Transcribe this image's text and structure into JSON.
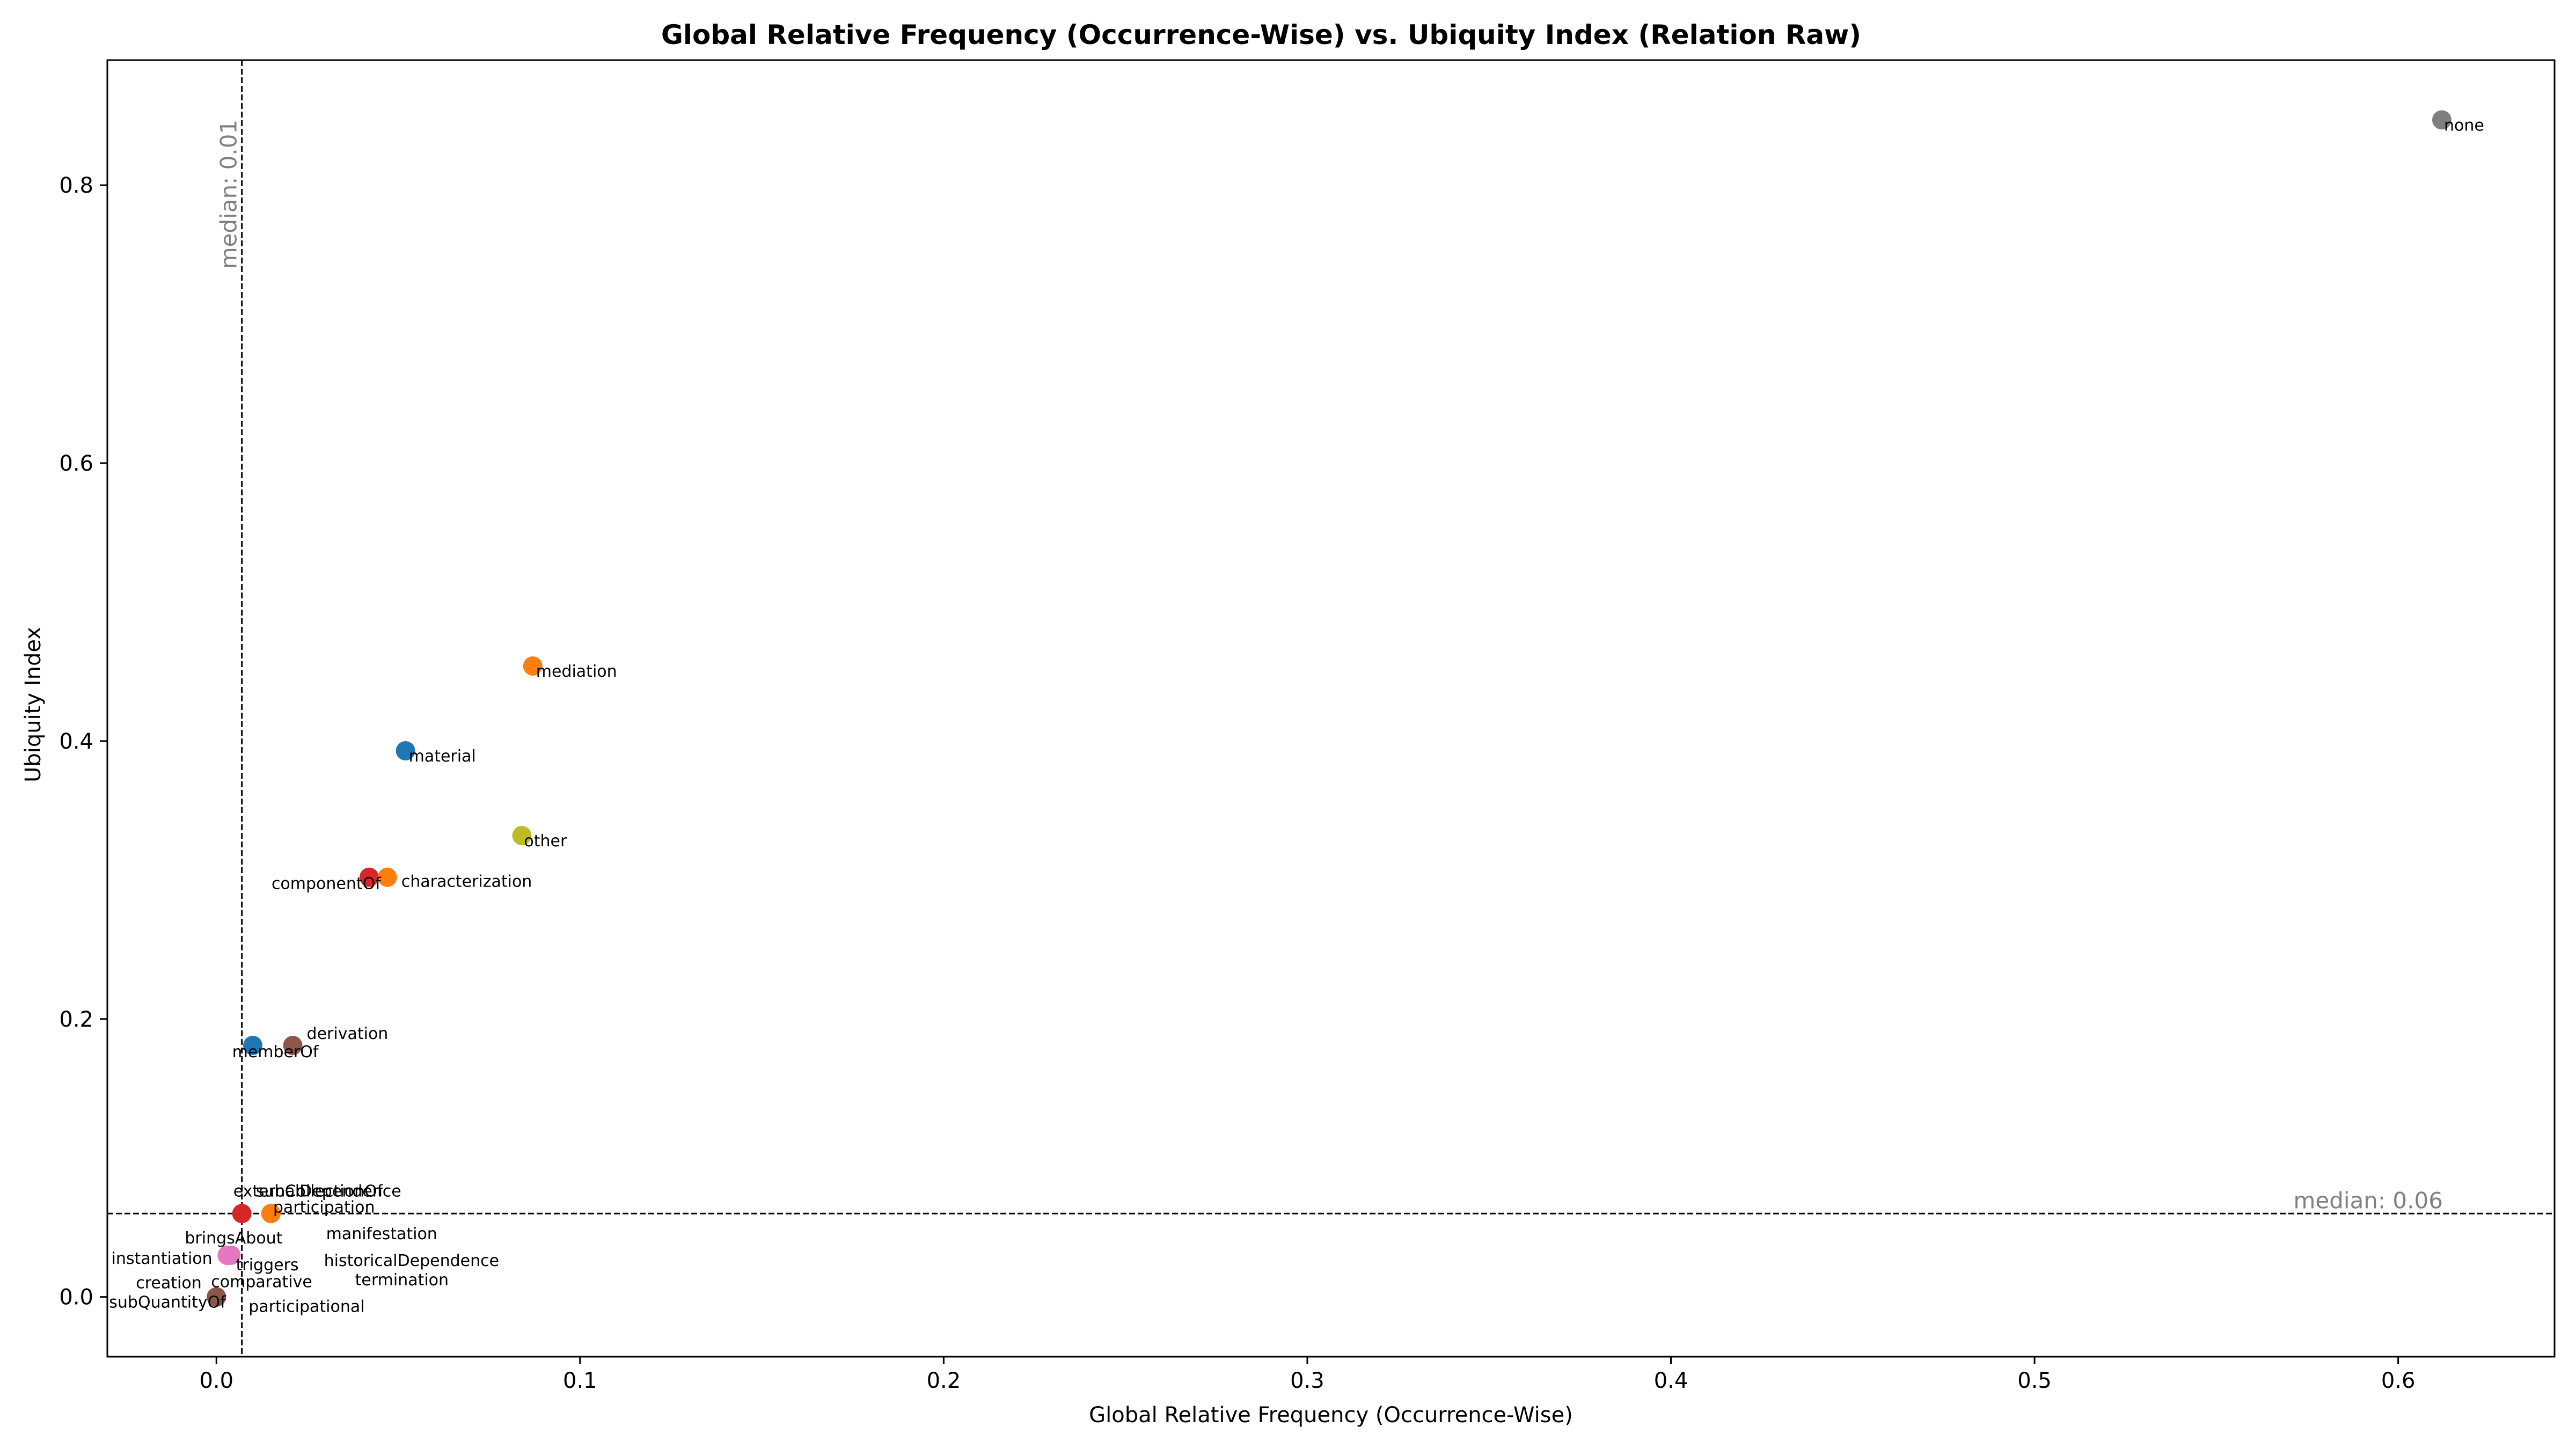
{
  "chart_data": {
    "type": "scatter",
    "title": "Global Relative Frequency (Occurrence-Wise) vs. Ubiquity Index (Relation Raw)",
    "xlabel": "Global Relative Frequency (Occurrence-Wise)",
    "ylabel": "Ubiquity Index",
    "xlim": [
      -0.03,
      0.643
    ],
    "ylim": [
      -0.043,
      0.89
    ],
    "xticks": [
      0.0,
      0.1,
      0.2,
      0.3,
      0.4,
      0.5,
      0.6
    ],
    "xtick_labels": [
      "0.0",
      "0.1",
      "0.2",
      "0.3",
      "0.4",
      "0.5",
      "0.6"
    ],
    "yticks": [
      0.0,
      0.2,
      0.4,
      0.6,
      0.8
    ],
    "ytick_labels": [
      "0.0",
      "0.2",
      "0.4",
      "0.6",
      "0.8"
    ],
    "grid": false,
    "medians": {
      "x": {
        "value": 0.007,
        "label": "median: 0.01"
      },
      "y": {
        "value": 0.06,
        "label": "median: 0.06"
      }
    },
    "points": [
      {
        "label": "none",
        "x": 0.612,
        "y": 0.847,
        "color": "#7f7f7f"
      },
      {
        "label": "mediation",
        "x": 0.087,
        "y": 0.454,
        "color": "#ff7f0e"
      },
      {
        "label": "material",
        "x": 0.052,
        "y": 0.393,
        "color": "#1f77b4"
      },
      {
        "label": "other",
        "x": 0.084,
        "y": 0.332,
        "color": "#bcbd22"
      },
      {
        "label": "componentOf",
        "x": 0.042,
        "y": 0.302,
        "color": "#d62728"
      },
      {
        "label": "characterization",
        "x": 0.047,
        "y": 0.302,
        "color": "#ff7f0e"
      },
      {
        "label": "derivation",
        "x": 0.021,
        "y": 0.181,
        "color": "#8c564b"
      },
      {
        "label": "memberOf",
        "x": 0.01,
        "y": 0.181,
        "color": "#1f77b4"
      },
      {
        "label": "externalDependence",
        "x": 0.007,
        "y": 0.06,
        "color": "#d62728"
      },
      {
        "label": "subCollectionOf",
        "x": 0.015,
        "y": 0.06,
        "color": "#ff7f0e"
      },
      {
        "label": "participation",
        "x": 0.015,
        "y": 0.06,
        "color": "#ff7f0e"
      },
      {
        "label": "bringsAbout",
        "x": 0.004,
        "y": 0.03,
        "color": "#e377c2"
      },
      {
        "label": "instantiation",
        "x": 0.003,
        "y": 0.03,
        "color": "#e377c2"
      },
      {
        "label": "triggers",
        "x": 0.003,
        "y": 0.03,
        "color": "#e377c2"
      },
      {
        "label": "manifestation",
        "x": 0.003,
        "y": 0.03,
        "color": "#e377c2"
      },
      {
        "label": "historicalDependence",
        "x": 0.003,
        "y": 0.03,
        "color": "#e377c2"
      },
      {
        "label": "termination",
        "x": 0.003,
        "y": 0.03,
        "color": "#e377c2"
      },
      {
        "label": "creation",
        "x": 0.0,
        "y": 0.0,
        "color": "#8c564b"
      },
      {
        "label": "comparative",
        "x": 0.0,
        "y": 0.0,
        "color": "#8c564b"
      },
      {
        "label": "subQuantityOf",
        "x": 0.0,
        "y": 0.0,
        "color": "#8c564b"
      },
      {
        "label": "participational",
        "x": 0.0,
        "y": 0.0,
        "color": "#8c564b"
      }
    ]
  }
}
